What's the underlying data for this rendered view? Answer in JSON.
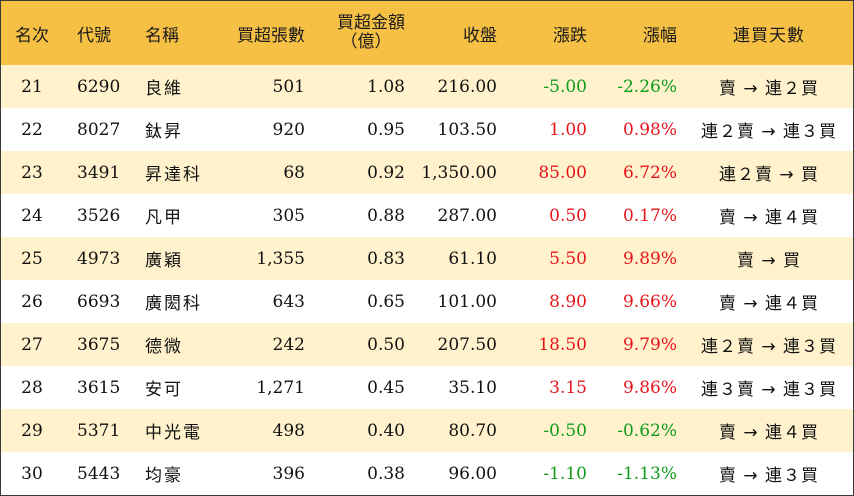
{
  "colors": {
    "header_bg": "#f6c045",
    "stripe_bg": "#fff2cc",
    "up": "#e8141c",
    "down": "#109c1b"
  },
  "headers": {
    "rank": "名次",
    "code": "代號",
    "name": "名稱",
    "net_buy_lots": "買超張數",
    "net_buy_amount_line1": "買超金額",
    "net_buy_amount_line2": "（億）",
    "close": "收盤",
    "change": "漲跌",
    "change_pct": "漲幅",
    "consecutive_buy_days": "連買天數"
  },
  "rows": [
    {
      "rank": "21",
      "code": "6290",
      "name": "良維",
      "lots": "501",
      "amount": "1.08",
      "close": "216.00",
      "change": "-5.00",
      "pct": "-2.26%",
      "trend": "down",
      "days": "賣 → 連２買"
    },
    {
      "rank": "22",
      "code": "8027",
      "name": "鈦昇",
      "lots": "920",
      "amount": "0.95",
      "close": "103.50",
      "change": "1.00",
      "pct": "0.98%",
      "trend": "up",
      "days": "連２賣 → 連３買"
    },
    {
      "rank": "23",
      "code": "3491",
      "name": "昇達科",
      "lots": "68",
      "amount": "0.92",
      "close": "1,350.00",
      "change": "85.00",
      "pct": "6.72%",
      "trend": "up",
      "days": "連２賣 → 買"
    },
    {
      "rank": "24",
      "code": "3526",
      "name": "凡甲",
      "lots": "305",
      "amount": "0.88",
      "close": "287.00",
      "change": "0.50",
      "pct": "0.17%",
      "trend": "up",
      "days": "賣 → 連４買"
    },
    {
      "rank": "25",
      "code": "4973",
      "name": "廣穎",
      "lots": "1,355",
      "amount": "0.83",
      "close": "61.10",
      "change": "5.50",
      "pct": "9.89%",
      "trend": "up",
      "days": "賣 → 買"
    },
    {
      "rank": "26",
      "code": "6693",
      "name": "廣閎科",
      "lots": "643",
      "amount": "0.65",
      "close": "101.00",
      "change": "8.90",
      "pct": "9.66%",
      "trend": "up",
      "days": "賣 → 連４買"
    },
    {
      "rank": "27",
      "code": "3675",
      "name": "德微",
      "lots": "242",
      "amount": "0.50",
      "close": "207.50",
      "change": "18.50",
      "pct": "9.79%",
      "trend": "up",
      "days": "連２賣 → 連３買"
    },
    {
      "rank": "28",
      "code": "3615",
      "name": "安可",
      "lots": "1,271",
      "amount": "0.45",
      "close": "35.10",
      "change": "3.15",
      "pct": "9.86%",
      "trend": "up",
      "days": "連３賣 → 連３買"
    },
    {
      "rank": "29",
      "code": "5371",
      "name": "中光電",
      "lots": "498",
      "amount": "0.40",
      "close": "80.70",
      "change": "-0.50",
      "pct": "-0.62%",
      "trend": "down",
      "days": "賣 → 連４買"
    },
    {
      "rank": "30",
      "code": "5443",
      "name": "均豪",
      "lots": "396",
      "amount": "0.38",
      "close": "96.00",
      "change": "-1.10",
      "pct": "-1.13%",
      "trend": "down",
      "days": "賣 → 連３買"
    }
  ]
}
